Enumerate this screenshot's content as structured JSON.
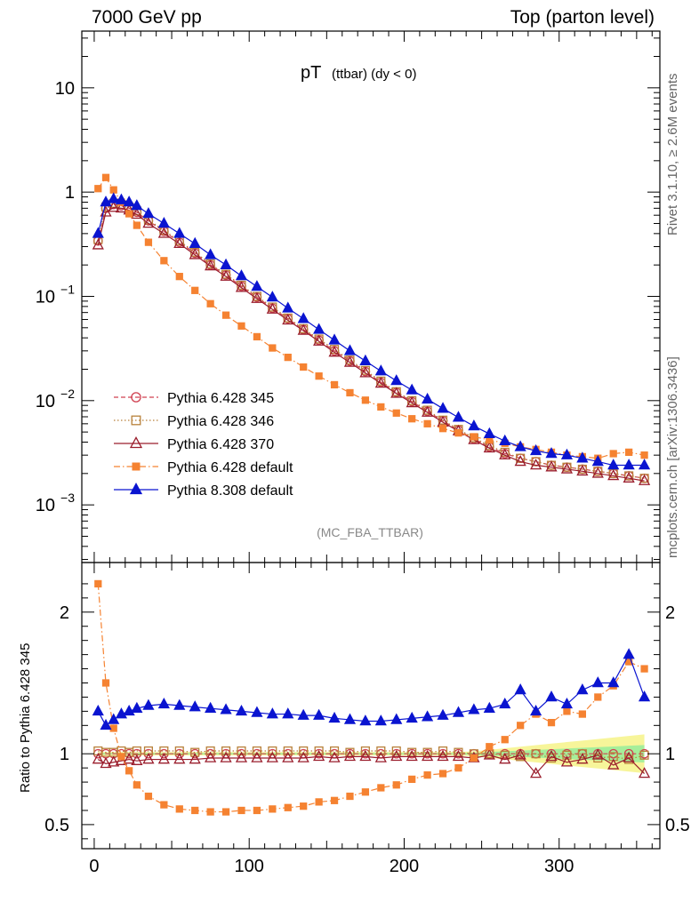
{
  "header": {
    "left": "7000 GeV pp",
    "right": "Top (parton level)"
  },
  "side": {
    "rivet": "Rivet 3.1.10, ≥ 2.6M events",
    "mcplots": "mcplots.cern.ch [arXiv:1306.3436]"
  },
  "plot_title": {
    "main": "pT",
    "sub": "(ttbar) (dy < 0)"
  },
  "analysis_label": "(MC_FBA_TTBAR)",
  "ratio_ylabel": "Ratio to Pythia 6.428 345",
  "chart_data": {
    "type": "scatter",
    "xlim": [
      -8,
      365
    ],
    "main_panel": {
      "yscale": "log",
      "ylim": [
        0.00028,
        35
      ],
      "ytick_values": [
        0.001,
        0.01,
        0.1,
        1,
        10
      ],
      "ytick_labels": [
        {
          "base": "10",
          "exp": "−3"
        },
        {
          "base": "10",
          "exp": "−2"
        },
        {
          "base": "10",
          "exp": "−1"
        },
        {
          "base": "1",
          "exp": ""
        },
        {
          "base": "10",
          "exp": ""
        }
      ]
    },
    "ratio_panel": {
      "ylim": [
        0.33,
        2.35
      ],
      "ytick_values": [
        0.5,
        1,
        2
      ],
      "ytick_labels": [
        "0.5",
        "1",
        "2"
      ]
    },
    "xtick_values": [
      0,
      100,
      200,
      300
    ],
    "xtick_labels": [
      "0",
      "100",
      "200",
      "300"
    ],
    "legend_position": "bottom-left",
    "series": [
      {
        "name": "Pythia 6.428 345",
        "color": "#d04050",
        "marker": "circle-open",
        "line": "dashed",
        "x": [
          2.5,
          7.5,
          12.5,
          17.5,
          22.5,
          27.5,
          35,
          45,
          55,
          65,
          75,
          85,
          95,
          105,
          115,
          125,
          135,
          145,
          155,
          165,
          175,
          185,
          195,
          205,
          215,
          225,
          235,
          245,
          255,
          265,
          275,
          285,
          295,
          305,
          315,
          325,
          335,
          345,
          355
        ],
        "y": [
          0.34,
          0.7,
          0.76,
          0.74,
          0.7,
          0.64,
          0.53,
          0.42,
          0.33,
          0.26,
          0.2,
          0.16,
          0.125,
          0.098,
          0.077,
          0.061,
          0.048,
          0.038,
          0.03,
          0.024,
          0.019,
          0.015,
          0.012,
          0.0098,
          0.0079,
          0.0064,
          0.0052,
          0.0043,
          0.0036,
          0.0031,
          0.0028,
          0.0026,
          0.0024,
          0.0023,
          0.0022,
          0.0021,
          0.002,
          0.0019,
          0.0018
        ],
        "ratio_y": [
          1.0,
          1.0,
          1.0,
          1.0,
          1.0,
          1.0,
          1.0,
          1.0,
          1.0,
          1.0,
          1.0,
          1.0,
          1.0,
          1.0,
          1.0,
          1.0,
          1.0,
          1.0,
          1.0,
          1.0,
          1.0,
          1.0,
          1.0,
          1.0,
          1.0,
          1.0,
          1.0,
          1.0,
          1.0,
          1.0,
          1.0,
          1.0,
          1.0,
          1.0,
          1.0,
          1.0,
          1.0,
          1.0,
          1.0
        ]
      },
      {
        "name": "Pythia 6.428 346",
        "color": "#b8803a",
        "marker": "square-open",
        "line": "dotted",
        "x": [
          2.5,
          7.5,
          12.5,
          17.5,
          22.5,
          27.5,
          35,
          45,
          55,
          65,
          75,
          85,
          95,
          105,
          115,
          125,
          135,
          145,
          155,
          165,
          175,
          185,
          195,
          205,
          215,
          225,
          235,
          245,
          255,
          265,
          275,
          285,
          295,
          305,
          315,
          325,
          335,
          345,
          355
        ],
        "y": [
          0.35,
          0.72,
          0.78,
          0.76,
          0.72,
          0.66,
          0.54,
          0.43,
          0.34,
          0.265,
          0.205,
          0.163,
          0.128,
          0.1,
          0.079,
          0.062,
          0.049,
          0.039,
          0.031,
          0.0245,
          0.0195,
          0.0154,
          0.0122,
          0.01,
          0.0081,
          0.0065,
          0.0053,
          0.0044,
          0.0037,
          0.0032,
          0.0028,
          0.0026,
          0.0024,
          0.0023,
          0.0022,
          0.0021,
          0.002,
          0.0019,
          0.0018
        ],
        "ratio_y": [
          1.02,
          1.01,
          1.01,
          1.02,
          1.01,
          1.02,
          1.02,
          1.02,
          1.02,
          1.01,
          1.02,
          1.02,
          1.02,
          1.02,
          1.02,
          1.02,
          1.02,
          1.02,
          1.02,
          1.01,
          1.02,
          1.02,
          1.02,
          1.01,
          1.01,
          1.02,
          1.01,
          1.0,
          1.0,
          0.99,
          0.98,
          1.0,
          0.97,
          0.99,
          1.0,
          0.97,
          0.98,
          0.96,
          0.99
        ]
      },
      {
        "name": "Pythia 6.428 370",
        "color": "#9a1d2c",
        "marker": "triangle-open",
        "line": "solid",
        "x": [
          2.5,
          7.5,
          12.5,
          17.5,
          22.5,
          27.5,
          35,
          45,
          55,
          65,
          75,
          85,
          95,
          105,
          115,
          125,
          135,
          145,
          155,
          165,
          175,
          185,
          195,
          205,
          215,
          225,
          235,
          245,
          255,
          265,
          275,
          285,
          295,
          305,
          315,
          325,
          335,
          345,
          355
        ],
        "y": [
          0.31,
          0.64,
          0.71,
          0.7,
          0.67,
          0.61,
          0.5,
          0.4,
          0.32,
          0.25,
          0.195,
          0.155,
          0.121,
          0.095,
          0.075,
          0.059,
          0.047,
          0.037,
          0.029,
          0.0232,
          0.0184,
          0.0146,
          0.0117,
          0.0095,
          0.0077,
          0.0062,
          0.0051,
          0.0042,
          0.0035,
          0.003,
          0.0026,
          0.0024,
          0.0023,
          0.0022,
          0.0021,
          0.002,
          0.0019,
          0.0018,
          0.0017
        ],
        "ratio_y": [
          0.96,
          0.93,
          0.94,
          0.95,
          0.96,
          0.95,
          0.96,
          0.96,
          0.96,
          0.96,
          0.97,
          0.97,
          0.97,
          0.97,
          0.97,
          0.97,
          0.97,
          0.98,
          0.97,
          0.98,
          0.98,
          0.97,
          0.98,
          0.98,
          0.98,
          0.98,
          0.98,
          0.97,
          0.99,
          0.96,
          0.99,
          0.86,
          0.98,
          0.94,
          0.96,
          0.99,
          0.92,
          0.97,
          0.86
        ]
      },
      {
        "name": "Pythia 6.428 default",
        "color": "#f58231",
        "marker": "square-filled",
        "line": "dashdot",
        "x": [
          2.5,
          7.5,
          12.5,
          17.5,
          22.5,
          27.5,
          35,
          45,
          55,
          65,
          75,
          85,
          95,
          105,
          115,
          125,
          135,
          145,
          155,
          165,
          175,
          185,
          195,
          205,
          215,
          225,
          235,
          245,
          255,
          265,
          275,
          285,
          295,
          305,
          315,
          325,
          335,
          345,
          355
        ],
        "y": [
          1.08,
          1.38,
          1.05,
          0.8,
          0.62,
          0.48,
          0.33,
          0.22,
          0.155,
          0.114,
          0.085,
          0.066,
          0.052,
          0.041,
          0.032,
          0.026,
          0.021,
          0.0172,
          0.0142,
          0.0119,
          0.0101,
          0.0087,
          0.0076,
          0.0067,
          0.006,
          0.0054,
          0.0049,
          0.0045,
          0.0042,
          0.0039,
          0.0036,
          0.0034,
          0.0032,
          0.003,
          0.0029,
          0.0028,
          0.0031,
          0.0032,
          0.003
        ],
        "ratio_y": [
          2.2,
          1.5,
          1.18,
          0.98,
          0.88,
          0.78,
          0.7,
          0.64,
          0.61,
          0.6,
          0.59,
          0.59,
          0.6,
          0.6,
          0.61,
          0.62,
          0.63,
          0.66,
          0.67,
          0.7,
          0.73,
          0.76,
          0.78,
          0.82,
          0.85,
          0.86,
          0.9,
          0.97,
          1.05,
          1.1,
          1.2,
          1.28,
          1.22,
          1.3,
          1.28,
          1.4,
          1.48,
          1.65,
          1.6
        ]
      },
      {
        "name": "Pythia 8.308 default",
        "color": "#0a14d0",
        "marker": "triangle-filled",
        "line": "solid",
        "x": [
          2.5,
          7.5,
          12.5,
          17.5,
          22.5,
          27.5,
          35,
          45,
          55,
          65,
          75,
          85,
          95,
          105,
          115,
          125,
          135,
          145,
          155,
          165,
          175,
          185,
          195,
          205,
          215,
          225,
          235,
          245,
          255,
          265,
          275,
          285,
          295,
          305,
          315,
          325,
          335,
          345,
          355
        ],
        "y": [
          0.4,
          0.8,
          0.86,
          0.84,
          0.8,
          0.74,
          0.62,
          0.5,
          0.4,
          0.32,
          0.25,
          0.2,
          0.157,
          0.124,
          0.098,
          0.077,
          0.061,
          0.048,
          0.038,
          0.03,
          0.024,
          0.0192,
          0.0155,
          0.0126,
          0.0103,
          0.0084,
          0.0069,
          0.0057,
          0.0048,
          0.0041,
          0.0036,
          0.0033,
          0.0031,
          0.003,
          0.0028,
          0.0026,
          0.0024,
          0.0024,
          0.0024
        ],
        "ratio_y": [
          1.3,
          1.2,
          1.24,
          1.28,
          1.3,
          1.32,
          1.34,
          1.35,
          1.34,
          1.33,
          1.32,
          1.31,
          1.3,
          1.29,
          1.28,
          1.28,
          1.27,
          1.27,
          1.25,
          1.24,
          1.23,
          1.23,
          1.24,
          1.25,
          1.26,
          1.27,
          1.29,
          1.31,
          1.32,
          1.35,
          1.45,
          1.3,
          1.4,
          1.35,
          1.45,
          1.5,
          1.5,
          1.7,
          1.4
        ]
      }
    ]
  }
}
